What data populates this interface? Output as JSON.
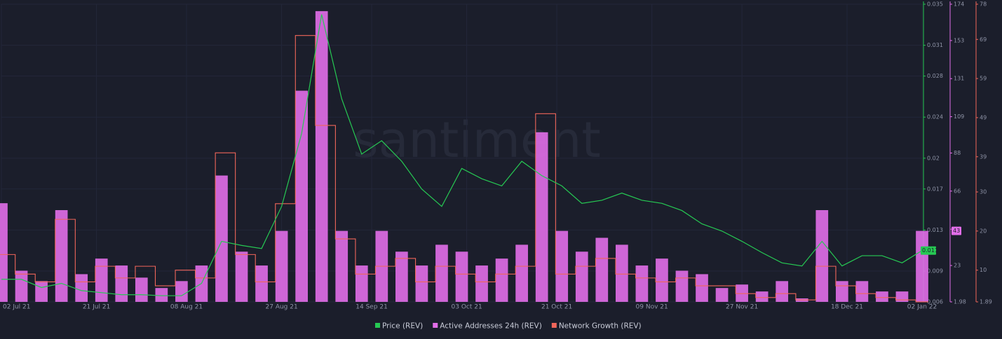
{
  "chart_data": {
    "type": "combo",
    "watermark": "santiment",
    "grid": true,
    "legend": "bottom",
    "x": [
      "2021-07-02",
      "2021-07-06",
      "2021-07-10",
      "2021-07-14",
      "2021-07-18",
      "2021-07-22",
      "2021-07-26",
      "2021-07-30",
      "2021-08-03",
      "2021-08-07",
      "2021-08-11",
      "2021-08-15",
      "2021-08-19",
      "2021-08-23",
      "2021-08-27",
      "2021-08-31",
      "2021-09-04",
      "2021-09-08",
      "2021-09-12",
      "2021-09-16",
      "2021-09-20",
      "2021-09-24",
      "2021-09-28",
      "2021-10-02",
      "2021-10-06",
      "2021-10-10",
      "2021-10-14",
      "2021-10-18",
      "2021-10-22",
      "2021-10-26",
      "2021-10-30",
      "2021-11-03",
      "2021-11-07",
      "2021-11-11",
      "2021-11-15",
      "2021-11-19",
      "2021-11-23",
      "2021-11-27",
      "2021-12-01",
      "2021-12-05",
      "2021-12-09",
      "2021-12-13",
      "2021-12-17",
      "2021-12-21",
      "2021-12-25",
      "2021-12-29",
      "2022-01-02"
    ],
    "xlim": [
      "2021-07-02",
      "2022-01-02"
    ],
    "xticks": [
      {
        "value": "2021-07-02",
        "label": "02 Jul 21"
      },
      {
        "value": "2021-07-21",
        "label": "21 Jul 21"
      },
      {
        "value": "2021-08-08",
        "label": "08 Aug 21"
      },
      {
        "value": "2021-08-27",
        "label": "27 Aug 21"
      },
      {
        "value": "2021-09-14",
        "label": "14 Sep 21"
      },
      {
        "value": "2021-10-03",
        "label": "03 Oct 21"
      },
      {
        "value": "2021-10-21",
        "label": "21 Oct 21"
      },
      {
        "value": "2021-11-09",
        "label": "09 Nov 21"
      },
      {
        "value": "2021-11-27",
        "label": "27 Nov 21"
      },
      {
        "value": "2021-12-18",
        "label": "18 Dec 21"
      },
      {
        "value": "2022-01-02",
        "label": "02 Jan 22"
      }
    ],
    "ylim": [
      0.006,
      0.035
    ],
    "yticks": [
      0.006,
      0.009,
      0.013,
      0.017,
      0.02,
      0.024,
      0.028,
      0.031,
      0.035
    ],
    "y2lim": [
      1.98,
      174
    ],
    "y2ticks": [
      1.98,
      23,
      44,
      66,
      88,
      109,
      131,
      153,
      174
    ],
    "y3lim": [
      1.89,
      78
    ],
    "y3ticks": [
      1.89,
      10,
      20,
      30,
      39,
      49,
      59,
      69,
      78
    ],
    "series": [
      {
        "name": "Price (REV)",
        "color": "#26c953",
        "kind": "line",
        "axis": "y",
        "badge": "0.011",
        "values": [
          0.0082,
          0.0082,
          0.0074,
          0.0078,
          0.0071,
          0.0069,
          0.0067,
          0.0067,
          0.0066,
          0.0066,
          0.0078,
          0.0119,
          0.0115,
          0.0112,
          0.0153,
          0.0224,
          0.034,
          0.0258,
          0.0204,
          0.0217,
          0.0197,
          0.017,
          0.0153,
          0.019,
          0.018,
          0.0173,
          0.0197,
          0.0183,
          0.0173,
          0.0156,
          0.0159,
          0.0166,
          0.0159,
          0.0156,
          0.0149,
          0.0136,
          0.0129,
          0.0119,
          0.0108,
          0.0098,
          0.0095,
          0.0119,
          0.0095,
          0.0105,
          0.0105,
          0.0098,
          0.011
        ]
      },
      {
        "name": "Active Addresses 24h (REV)",
        "color": "#e26ee9",
        "kind": "bar",
        "axis": "y2",
        "badge": "43",
        "values": [
          59,
          20,
          14,
          55,
          18,
          27,
          23,
          16,
          10,
          14,
          23,
          75,
          31,
          23,
          43,
          124,
          170,
          43,
          23,
          43,
          31,
          23,
          35,
          31,
          23,
          27,
          35,
          100,
          43,
          31,
          39,
          35,
          23,
          27,
          20,
          18,
          10,
          12,
          8,
          14,
          4,
          55,
          14,
          14,
          8,
          8,
          43
        ]
      },
      {
        "name": "Network Growth (REV)",
        "color": "#f0665a",
        "kind": "step",
        "axis": "y3",
        "values": [
          14,
          9,
          7,
          23,
          7,
          11,
          8,
          11,
          6,
          10,
          8,
          40,
          14,
          7,
          27,
          70,
          47,
          18,
          9,
          11,
          13,
          7,
          11,
          9,
          7,
          9,
          11,
          50,
          9,
          11,
          13,
          9,
          8,
          7,
          8,
          6,
          6,
          4,
          3,
          4,
          2.4,
          11,
          6,
          4,
          3,
          2.4,
          1.9
        ]
      }
    ]
  }
}
